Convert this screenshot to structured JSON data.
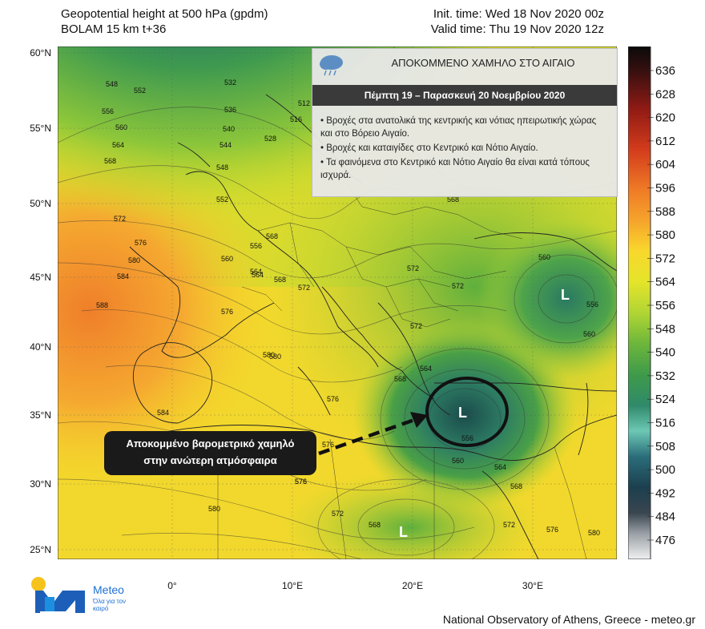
{
  "header": {
    "title": "Geopotential height at 500 hPa (gpdm)",
    "model": "BOLAM 15 km t+36",
    "init_time": "Init. time: Wed 18 Nov 2020 00z",
    "valid_time": "Valid time: Thu 19 Nov 2020 12z"
  },
  "latitude_labels": [
    "60°N",
    "55°N",
    "50°N",
    "45°N",
    "40°N",
    "35°N",
    "30°N",
    "25°N"
  ],
  "longitude_labels": [
    "0°",
    "10°E",
    "20°E",
    "30°E"
  ],
  "colorbar": {
    "labels": [
      "636",
      "628",
      "620",
      "612",
      "604",
      "596",
      "588",
      "580",
      "572",
      "564",
      "556",
      "548",
      "540",
      "532",
      "524",
      "516",
      "508",
      "500",
      "492",
      "484",
      "476"
    ]
  },
  "contour_labels": [
    "548",
    "552",
    "556",
    "560",
    "564",
    "568",
    "572",
    "576",
    "580",
    "584",
    "588",
    "532",
    "536",
    "540",
    "544",
    "548",
    "552",
    "528",
    "516",
    "512",
    "556",
    "560",
    "564",
    "568",
    "572",
    "572",
    "572",
    "580",
    "576",
    "584",
    "576",
    "568",
    "564",
    "560",
    "556",
    "576",
    "572",
    "568",
    "576",
    "580",
    "572",
    "568",
    "576",
    "560",
    "564",
    "568",
    "572",
    "576",
    "580",
    "556",
    "560",
    "564",
    "568",
    "580"
  ],
  "lows": [
    "L",
    "L",
    "L"
  ],
  "info": {
    "title": "ΑΠΟΚΟΜΜΕΝΟ ΧΑΜΗΛΟ ΣΤΟ ΑΙΓΑΙΟ",
    "dates": "Πέμπτη 19 – Παρασκευή 20 Νοεμβρίου 2020",
    "bullets": [
      "• Βροχές στα ανατολικά της κεντρικής και νότιας ηπειρωτικής χώρας και στο Βόρειο Αιγαίο.",
      "• Βροχές και καταιγίδες στο Κεντρικό και Νότιο Αιγαίο.",
      "• Τα φαινόμενα στο Κεντρικό και Νότιο Αιγαίο θα είναι κατά τόπους ισχυρά."
    ]
  },
  "callout": {
    "line1": "Αποκομμένο βαρομετρικό χαμηλό",
    "line2": "στην ανώτερη ατμόσφαιρα"
  },
  "logo": {
    "name": "Meteo",
    "tagline": "Όλα για τον καιρό"
  },
  "footer": "National Observatory of Athens, Greece - meteo.gr",
  "colors": {
    "orange": "#f08a2e",
    "yellow": "#f7e22a",
    "green": "#5aa83a",
    "teal": "#2f8a78",
    "dark": "#13343a"
  }
}
